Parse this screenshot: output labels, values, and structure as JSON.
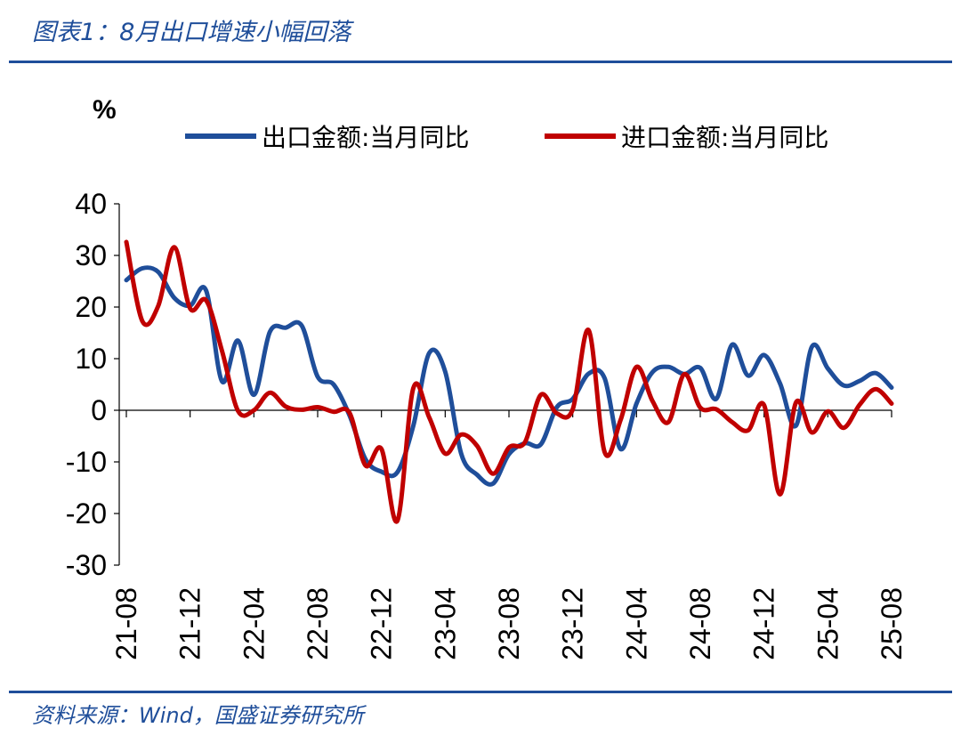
{
  "header": {
    "title": "图表1：8月出口增速小幅回落"
  },
  "footer": {
    "source": "资料来源：Wind，国盛证券研究所"
  },
  "colors": {
    "title": "#1f4e9a",
    "export": "#1f4e9a",
    "import": "#c00000",
    "axis": "#000000"
  },
  "chart_data": {
    "type": "line",
    "unit_label": "%",
    "ylim": [
      -30,
      40
    ],
    "yticks": [
      40,
      30,
      20,
      10,
      0,
      -10,
      -20,
      -30
    ],
    "xtick_labels": [
      "21-08",
      "21-12",
      "22-04",
      "22-08",
      "22-12",
      "23-04",
      "23-08",
      "23-12",
      "24-04",
      "24-08",
      "24-12",
      "25-04",
      "25-08"
    ],
    "legend_position": "top",
    "grid": false,
    "x": [
      "21-08",
      "21-09",
      "21-10",
      "21-11",
      "21-12",
      "22-01",
      "22-02",
      "22-03",
      "22-04",
      "22-05",
      "22-06",
      "22-07",
      "22-08",
      "22-09",
      "22-10",
      "22-11",
      "22-12",
      "23-01",
      "23-02",
      "23-03",
      "23-04",
      "23-05",
      "23-06",
      "23-07",
      "23-08",
      "23-09",
      "23-10",
      "23-11",
      "23-12",
      "24-01",
      "24-02",
      "24-03",
      "24-04",
      "24-05",
      "24-06",
      "24-07",
      "24-08",
      "24-09",
      "24-10",
      "24-11",
      "24-12",
      "25-01",
      "25-02",
      "25-03",
      "25-04",
      "25-05",
      "25-06",
      "25-07",
      "25-08"
    ],
    "series": [
      {
        "name": "出口金额:当月同比",
        "color": "#1f4e9a",
        "values": [
          25.2,
          27.5,
          26.8,
          21.8,
          20.3,
          23.2,
          5.6,
          13.5,
          3.0,
          15.2,
          16.0,
          16.4,
          6.5,
          5.0,
          -1.0,
          -9.5,
          -11.9,
          -12.0,
          -3.0,
          11.1,
          7.5,
          -8.4,
          -12.5,
          -14.2,
          -8.5,
          -6.4,
          -6.6,
          0.6,
          2.2,
          7.1,
          6.2,
          -7.5,
          1.3,
          7.4,
          8.4,
          7.0,
          8.2,
          2.2,
          12.7,
          6.7,
          10.7,
          5.2,
          -3.0,
          12.3,
          8.1,
          4.8,
          5.7,
          7.2,
          4.4
        ]
      },
      {
        "name": "进口金额:当月同比",
        "color": "#c00000",
        "values": [
          32.6,
          17.3,
          20.2,
          31.6,
          19.7,
          21.3,
          11.5,
          -0.1,
          0.0,
          3.4,
          0.7,
          0.1,
          0.6,
          -0.3,
          -0.5,
          -10.7,
          -7.5,
          -21.4,
          4.3,
          -1.4,
          -8.4,
          -4.7,
          -6.9,
          -12.3,
          -7.2,
          -6.2,
          3.0,
          -0.6,
          0.2,
          15.5,
          -8.1,
          -1.9,
          8.4,
          1.8,
          -2.3,
          7.0,
          0.5,
          0.2,
          -2.3,
          -3.9,
          1.0,
          -16.3,
          1.5,
          -4.3,
          -0.2,
          -3.4,
          1.1,
          4.1,
          1.3
        ]
      }
    ]
  }
}
